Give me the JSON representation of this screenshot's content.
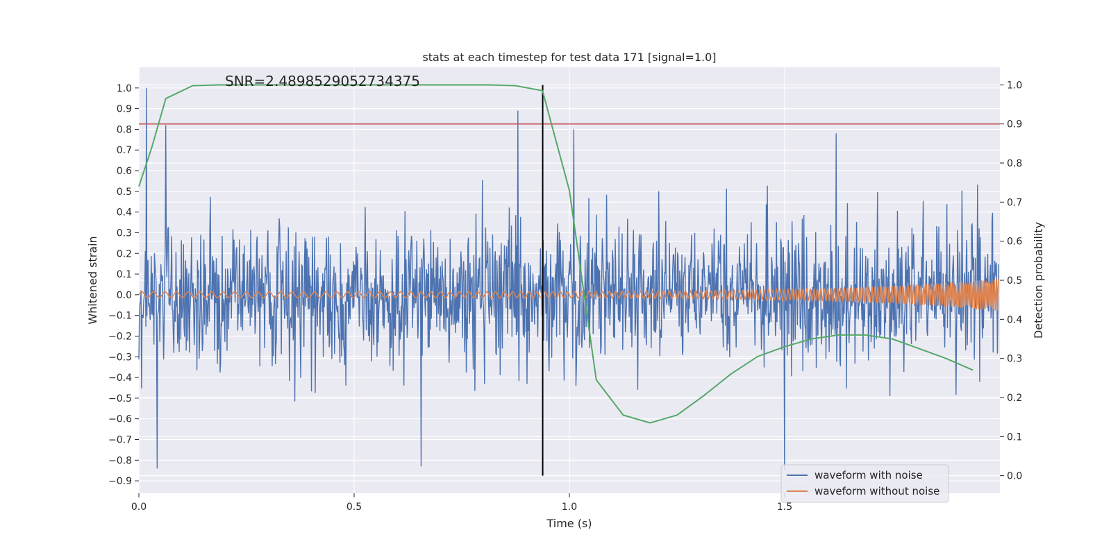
{
  "chart_data": {
    "type": "line",
    "title": "stats at each timestep for test data 171 [signal=1.0]",
    "xlabel": "Time (s)",
    "ylabel_left": "Whitened strain",
    "ylabel_right": "Detection probability",
    "xlim": [
      0.0,
      2.0
    ],
    "ylim_left": [
      -0.96,
      1.1
    ],
    "ylim_right": [
      -0.045,
      1.045
    ],
    "x_ticks": [
      0.0,
      0.5,
      1.0,
      1.5
    ],
    "x_tick_labels": [
      "0.0",
      "0.5",
      "1.0",
      "1.5"
    ],
    "y_left_ticks": [
      1.0,
      0.9,
      0.8,
      0.7,
      0.6,
      0.5,
      0.4,
      0.3,
      0.2,
      0.1,
      0.0,
      -0.1,
      -0.2,
      -0.3,
      -0.4,
      -0.5,
      -0.6,
      -0.7,
      -0.8,
      -0.9
    ],
    "y_left_tick_labels": [
      "1.0",
      "0.9",
      "0.8",
      "0.7",
      "0.6",
      "0.5",
      "0.4",
      "0.3",
      "0.2",
      "0.1",
      "0.0",
      "−0.1",
      "−0.2",
      "−0.3",
      "−0.4",
      "−0.5",
      "−0.6",
      "−0.7",
      "−0.8",
      "−0.9"
    ],
    "y_right_ticks": [
      1.0,
      0.9,
      0.8,
      0.7,
      0.6,
      0.5,
      0.4,
      0.3,
      0.2,
      0.1,
      0.0
    ],
    "y_right_tick_labels": [
      "1.0",
      "0.9",
      "0.8",
      "0.7",
      "0.6",
      "0.5",
      "0.4",
      "0.3",
      "0.2",
      "0.1",
      "0.0"
    ],
    "annotation": "SNR=2.4898529052734375",
    "threshold_probability": 0.9,
    "merger_time": 0.938,
    "legend_position": "lower-right",
    "series": [
      {
        "name": "waveform with noise",
        "color": "#4c72b0",
        "axis": "left",
        "description": "dense noisy strain roughly between -0.85 and 1.0 over 0-2 s"
      },
      {
        "name": "waveform without noise",
        "color": "#dd8452",
        "axis": "left",
        "description": "chirp signal, amplitude ~0.015 rising to ~0.08 near t=2.0 s"
      },
      {
        "name": "detection probability",
        "color": "#55a868",
        "axis": "right",
        "x": [
          0.0,
          0.03,
          0.0625,
          0.125,
          0.1875,
          0.25,
          0.3125,
          0.375,
          0.4375,
          0.5,
          0.5625,
          0.625,
          0.6875,
          0.75,
          0.8125,
          0.875,
          0.9375,
          1.0,
          1.0625,
          1.125,
          1.1875,
          1.25,
          1.3125,
          1.375,
          1.4375,
          1.5,
          1.5625,
          1.625,
          1.6875,
          1.75,
          1.8125,
          1.875,
          1.9375
        ],
        "y": [
          0.74,
          0.84,
          0.965,
          0.998,
          1.0,
          1.0,
          1.0,
          1.0,
          1.0,
          1.0,
          1.0,
          1.0,
          1.0,
          1.0,
          1.0,
          0.998,
          0.985,
          0.73,
          0.245,
          0.155,
          0.135,
          0.155,
          0.205,
          0.26,
          0.305,
          0.33,
          0.35,
          0.36,
          0.36,
          0.35,
          0.325,
          0.3,
          0.27
        ]
      }
    ]
  },
  "colors": {
    "background": "#eaeaf2",
    "grid": "#ffffff",
    "noise": "#4c72b0",
    "clean": "#dd8452",
    "probability": "#55a868",
    "threshold": "#c44e52",
    "merger": "#000000"
  }
}
